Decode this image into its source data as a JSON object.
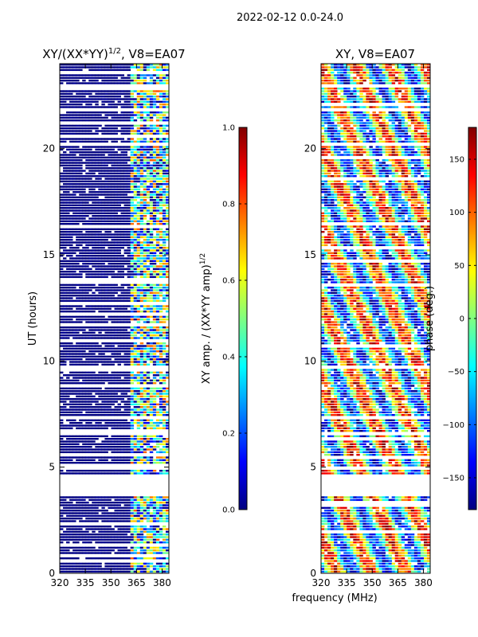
{
  "figure": {
    "suptitle": "2022-02-12 0.0-24.0",
    "xlabel_shared": "frequency (MHz)"
  },
  "colormap": {
    "stops": [
      "#000080",
      "#0000ff",
      "#0080ff",
      "#00ffff",
      "#80ff80",
      "#ffff00",
      "#ff8000",
      "#ff0000",
      "#800000"
    ]
  },
  "chart_data": [
    {
      "type": "heatmap",
      "title_main": "XY/(XX*YY)",
      "title_exp": "1/2",
      "title_suffix": ", V8=EA07",
      "xlabel": "",
      "ylabel": "UT (hours)",
      "xlim": [
        320,
        384
      ],
      "ylim": [
        0,
        24
      ],
      "xticks": [
        320,
        335,
        350,
        365,
        380
      ],
      "yticks": [
        0,
        5,
        10,
        15,
        20
      ],
      "clim": [
        0.0,
        1.0
      ],
      "colorbar_label_main": "XY amp. / (XX*YY amp)",
      "colorbar_label_exp": "1/2",
      "colorbar_ticks": [
        "0.0",
        "0.2",
        "0.4",
        "0.6",
        "0.8",
        "1.0"
      ],
      "colorbar_tick_values": [
        0.0,
        0.2,
        0.4,
        0.6,
        0.8,
        1.0
      ],
      "bands": [
        {
          "f0": 320,
          "f1": 361,
          "typical": 0.0,
          "spread": 0.02
        },
        {
          "f0": 361,
          "f1": 384,
          "typical": 0.45,
          "spread": 0.35
        }
      ],
      "gaps_hours": [
        [
          3.7,
          4.6
        ],
        [
          4.9,
          5.0
        ],
        [
          7.2,
          7.4
        ],
        [
          9.6,
          9.7
        ],
        [
          14.2,
          14.3
        ],
        [
          21.7,
          21.8
        ],
        [
          22.9,
          23.0
        ]
      ]
    },
    {
      "type": "heatmap",
      "title_main": "XY, V8=EA07",
      "xlabel": "frequency (MHz)",
      "ylabel": "",
      "xlim": [
        320,
        384
      ],
      "ylim": [
        0,
        24
      ],
      "xticks": [
        320,
        335,
        350,
        365,
        380
      ],
      "yticks": [
        0,
        5,
        10,
        15,
        20
      ],
      "clim": [
        -180,
        180
      ],
      "colorbar_label": "phase (deg.)",
      "colorbar_ticks": [
        "−150",
        "−100",
        "−50",
        "0",
        "50",
        "100",
        "150"
      ],
      "colorbar_tick_values": [
        -150,
        -100,
        -50,
        0,
        50,
        100,
        150
      ],
      "gaps_hours": [
        [
          3.7,
          4.6
        ],
        [
          4.9,
          5.0
        ],
        [
          7.2,
          7.4
        ],
        [
          9.6,
          9.7
        ],
        [
          14.2,
          14.3
        ],
        [
          21.7,
          21.8
        ],
        [
          22.9,
          23.0
        ]
      ]
    }
  ]
}
